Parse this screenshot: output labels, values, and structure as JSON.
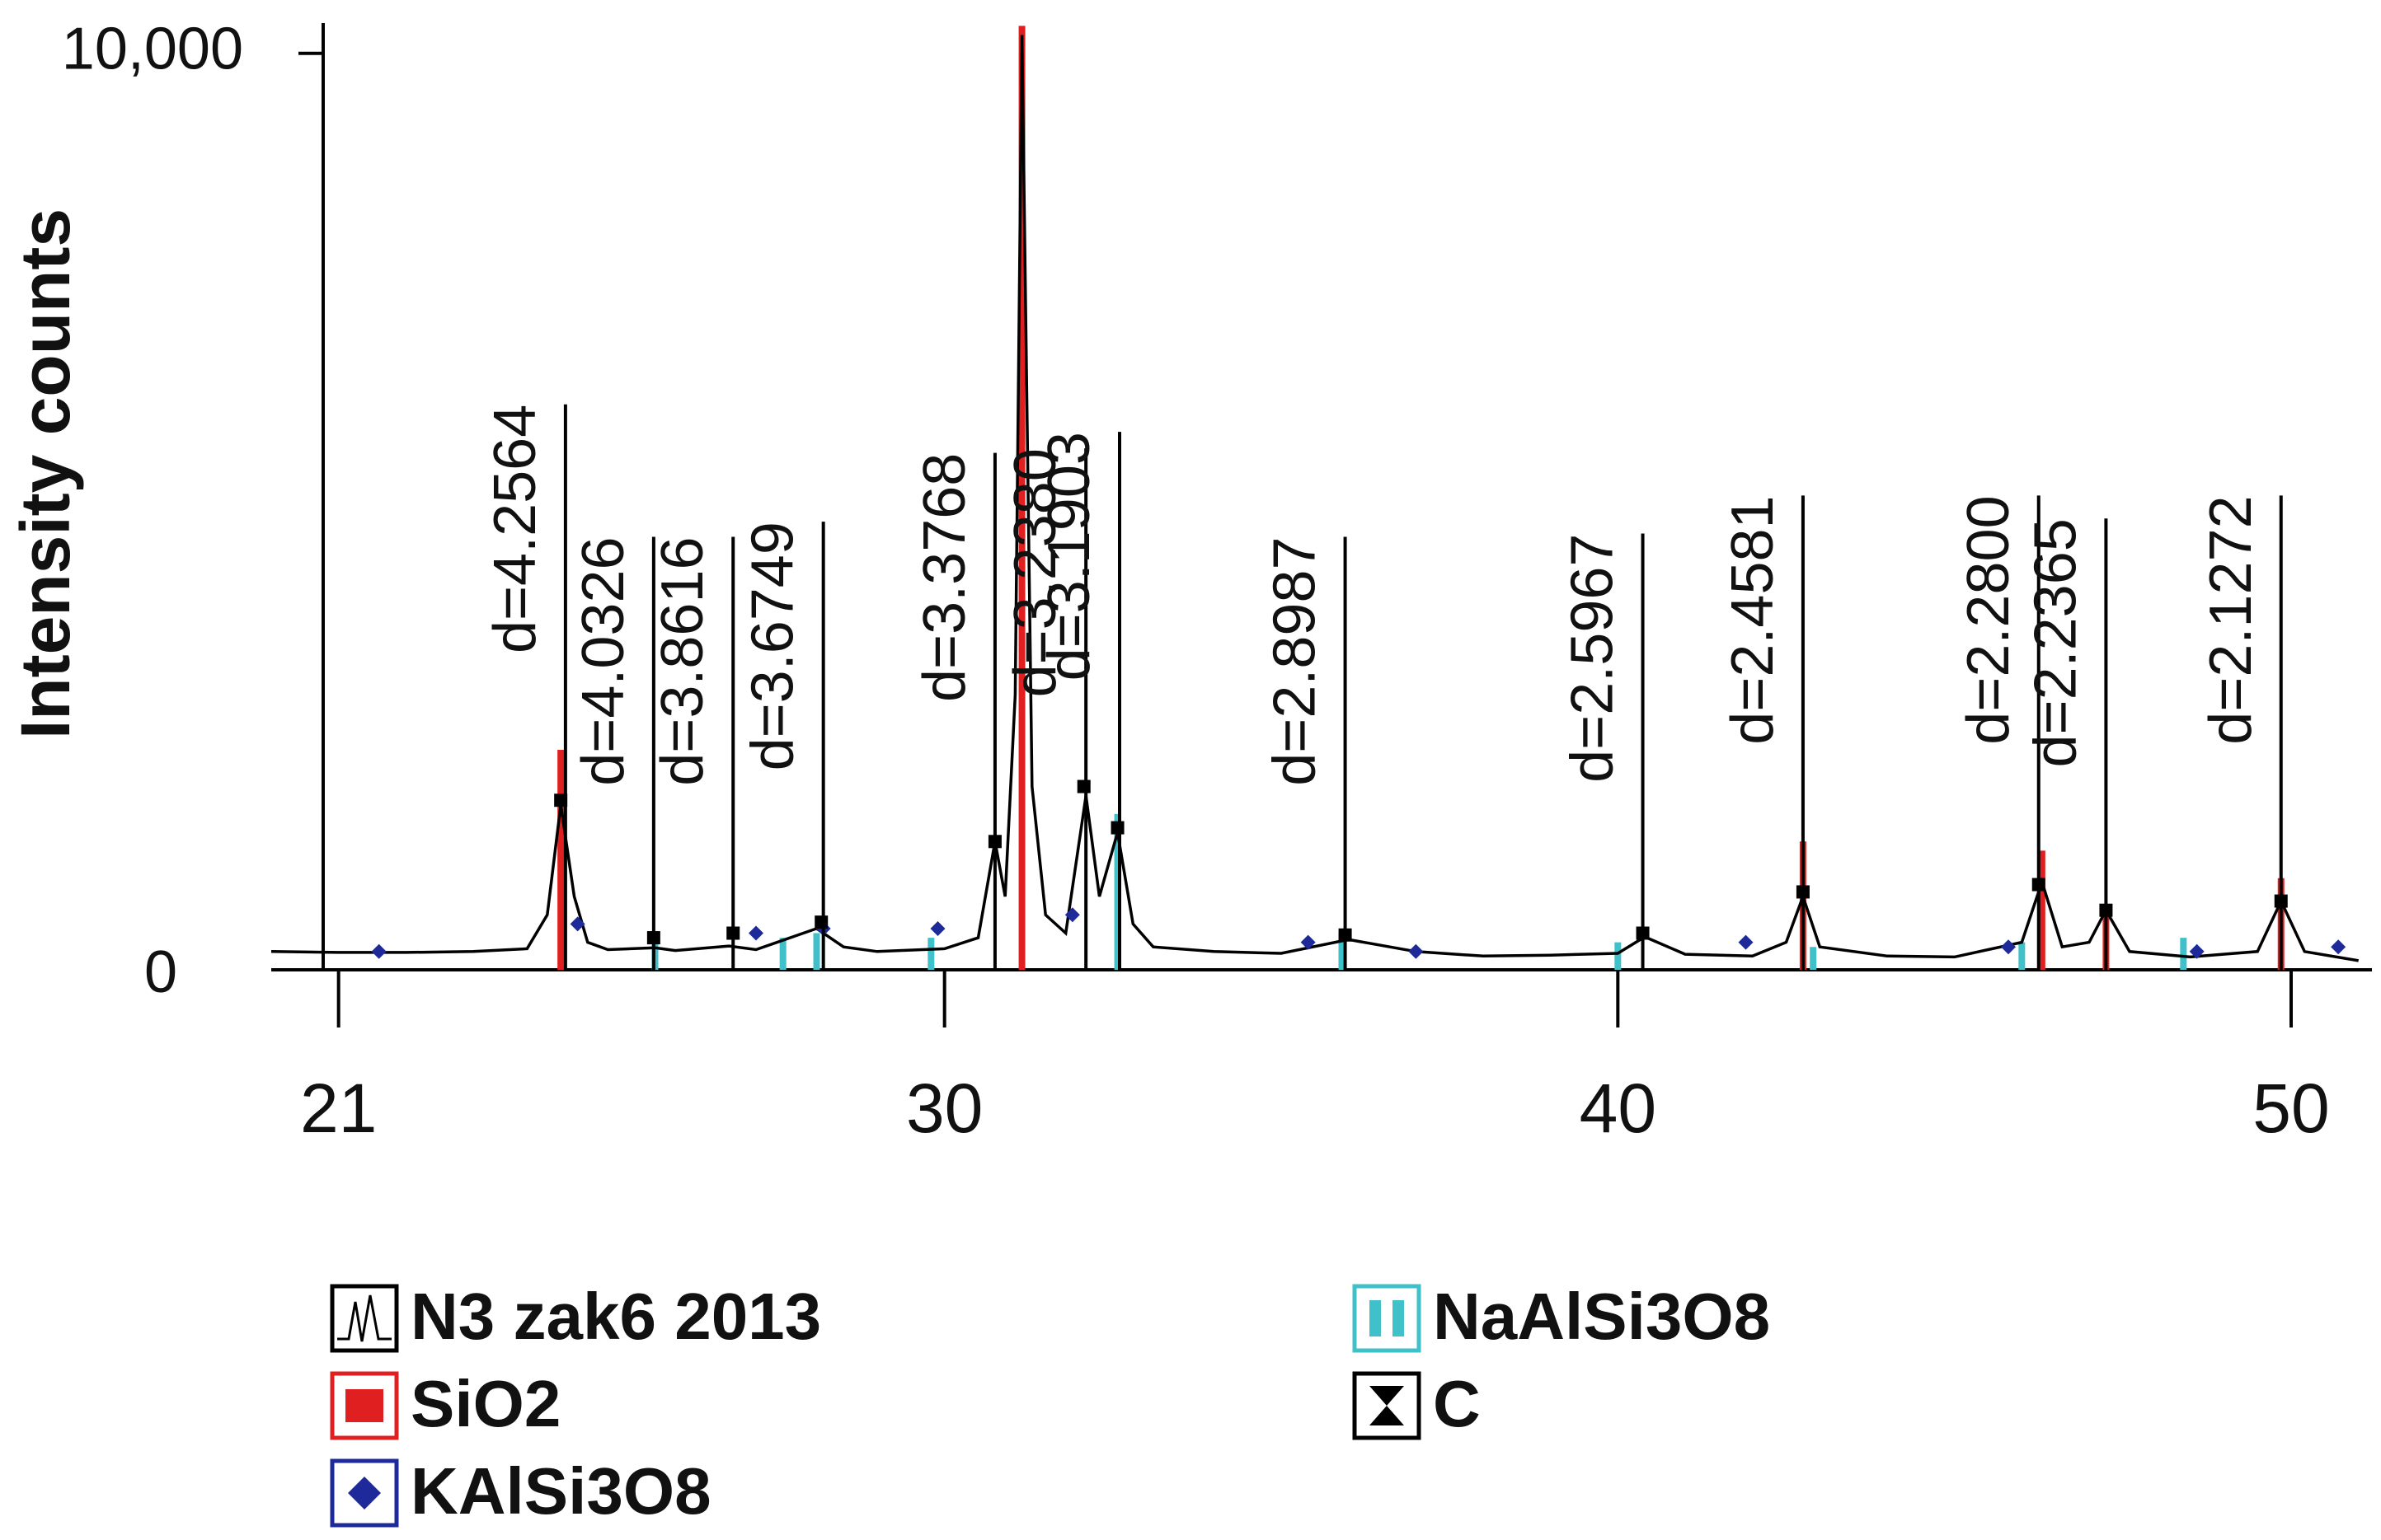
{
  "chart_data": {
    "type": "line",
    "y_label": "Intensity counts",
    "xlim": [
      20,
      51.2
    ],
    "xticks": [
      21,
      30,
      40,
      50
    ],
    "ylim": [
      0,
      10330
    ],
    "yticks": [
      0,
      {
        "value": 10000,
        "label": "10,000"
      }
    ],
    "legend": "bottom",
    "series": [
      {
        "name": "N3 zak6 2013",
        "color": "#000000",
        "mark": "line",
        "x": [
          20,
          21,
          22,
          23,
          23.8,
          24.1,
          24.3,
          24.5,
          24.7,
          25,
          25.7,
          26,
          26.8,
          27.2,
          28.1,
          28.5,
          29,
          30,
          30.5,
          30.75,
          30.9,
          31.05,
          31.15,
          31.3,
          31.5,
          31.8,
          32.1,
          32.3,
          32.57,
          32.8,
          33.1,
          34,
          35,
          36,
          37,
          38,
          39,
          40,
          40.4,
          41,
          42,
          42.5,
          42.75,
          43,
          44,
          45,
          46,
          46.3,
          46.6,
          47,
          47.25,
          47.6,
          48.5,
          49.5,
          49.85,
          50.2,
          51
        ],
        "values": [
          200,
          190,
          190,
          200,
          230,
          600,
          1800,
          800,
          300,
          220,
          240,
          210,
          260,
          220,
          450,
          250,
          200,
          230,
          350,
          1400,
          800,
          3000,
          10200,
          2000,
          600,
          400,
          1900,
          800,
          1500,
          500,
          250,
          200,
          180,
          330,
          200,
          150,
          160,
          180,
          360,
          170,
          150,
          300,
          800,
          250,
          150,
          140,
          300,
          960,
          250,
          300,
          650,
          200,
          140,
          200,
          750,
          200,
          100
        ]
      },
      {
        "name": "SiO2",
        "color": "#e02020",
        "mark": "stick",
        "x": [
          24.3,
          31.15,
          42.75,
          46.3,
          47.25,
          49.85
        ],
        "values": [
          2400,
          10300,
          1400,
          1300,
          700,
          1000
        ]
      },
      {
        "name": "KAlSi3O8",
        "color": "#1f2a9a",
        "mark": "diamond",
        "x": [
          21.6,
          24.55,
          27.2,
          28.2,
          29.9,
          31.9,
          35.4,
          37,
          41.9,
          45.8,
          48.6,
          50.7
        ],
        "values": [
          200,
          500,
          400,
          450,
          450,
          600,
          300,
          200,
          300,
          250,
          200,
          250
        ]
      },
      {
        "name": "NaAlSi3O8",
        "color": "#40c0c8",
        "mark": "stick",
        "x": [
          25.7,
          27.6,
          28.1,
          29.8,
          32.57,
          35.9,
          40,
          42.9,
          46,
          48.4
        ],
        "values": [
          300,
          350,
          400,
          350,
          1700,
          400,
          300,
          250,
          300,
          350
        ]
      },
      {
        "name": "C",
        "color": "#000000",
        "mark": "dot",
        "x": [
          24.3,
          25.68,
          26.86,
          28.17,
          30.75,
          32.07,
          32.57,
          35.95,
          40.37,
          42.75,
          46.25,
          47.25,
          49.85
        ],
        "values": [
          1850,
          350,
          400,
          520,
          1400,
          2000,
          1550,
          380,
          400,
          850,
          930,
          650,
          750
        ]
      }
    ],
    "annotations": [
      {
        "text": "d=4.2564",
        "x": 24.37,
        "y": 6170
      },
      {
        "text": "d=4.0326",
        "x": 25.68,
        "y": 4725
      },
      {
        "text": "d=3.8616",
        "x": 26.86,
        "y": 4725
      },
      {
        "text": "d=3.6749",
        "x": 28.2,
        "y": 4890
      },
      {
        "text": "d=3.3768",
        "x": 30.75,
        "y": 5640
      },
      {
        "text": "d=3.2380",
        "x": 32.1,
        "y": 5690
      },
      {
        "text": "d=3.1903",
        "x": 32.6,
        "y": 5870
      },
      {
        "text": "d=2.8987",
        "x": 35.95,
        "y": 4725
      },
      {
        "text": "d=2.5967",
        "x": 40.37,
        "y": 4760
      },
      {
        "text": "d=2.4581",
        "x": 42.75,
        "y": 5175
      },
      {
        "text": "d=2.2800",
        "x": 46.25,
        "y": 5175
      },
      {
        "text": "d=2.2365",
        "x": 47.25,
        "y": 4925
      },
      {
        "text": "d=2.1272",
        "x": 49.85,
        "y": 5175
      }
    ]
  }
}
